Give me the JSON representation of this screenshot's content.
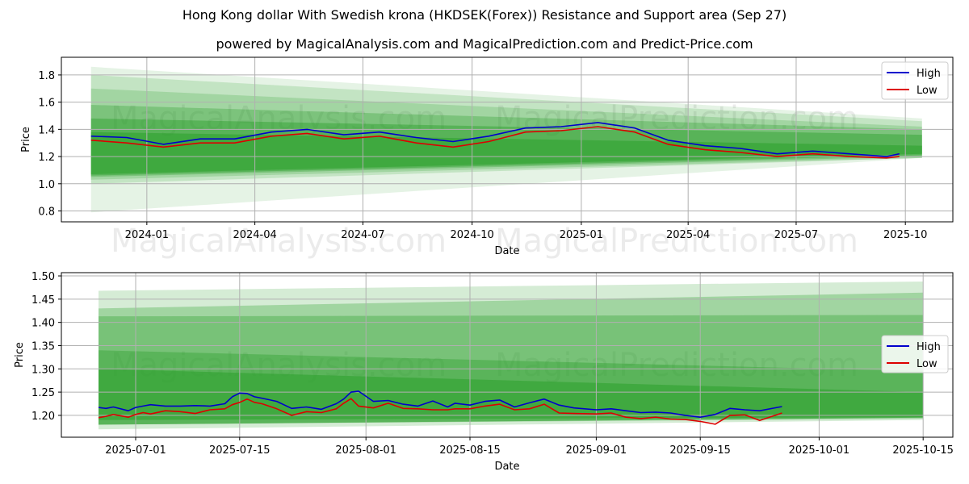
{
  "title": "Hong Kong dollar With Swedish krona (HKDSEK(Forex)) Resistance and Support area (Sep 27)",
  "subtitle": "powered by MagicalAnalysis.com and MagicalPrediction.com and Predict-Price.com",
  "watermarks": [
    "MagicalAnalysis.com",
    "MagicalPrediction.com"
  ],
  "colors": {
    "high": "#0000cc",
    "low": "#dd0000",
    "band": "#2ca02c",
    "grid": "#b0b0b0"
  },
  "chart_data": [
    {
      "type": "line",
      "xlabel": "Date",
      "ylabel": "Price",
      "grid": true,
      "legend_position": "top-right",
      "ylim": [
        0.72,
        1.93
      ],
      "x_ticks": [
        "2024-01",
        "2024-04",
        "2024-07",
        "2024-10",
        "2025-01",
        "2025-04",
        "2025-07",
        "2025-10"
      ],
      "y_ticks": [
        "0.8",
        "1.0",
        "1.2",
        "1.4",
        "1.6",
        "1.8"
      ],
      "series": [
        {
          "name": "High",
          "dates": [
            "2023-11-15",
            "2023-12-15",
            "2024-01-15",
            "2024-02-15",
            "2024-03-15",
            "2024-04-15",
            "2024-05-15",
            "2024-06-15",
            "2024-07-15",
            "2024-08-15",
            "2024-09-15",
            "2024-10-15",
            "2024-11-15",
            "2024-12-15",
            "2025-01-15",
            "2025-02-15",
            "2025-03-15",
            "2025-04-15",
            "2025-05-15",
            "2025-06-15",
            "2025-07-15",
            "2025-08-15",
            "2025-09-15",
            "2025-09-26"
          ],
          "values": [
            1.35,
            1.34,
            1.29,
            1.33,
            1.33,
            1.38,
            1.4,
            1.36,
            1.38,
            1.34,
            1.31,
            1.35,
            1.41,
            1.42,
            1.45,
            1.41,
            1.32,
            1.28,
            1.26,
            1.22,
            1.24,
            1.22,
            1.2,
            1.22
          ]
        },
        {
          "name": "Low",
          "dates": [
            "2023-11-15",
            "2023-12-15",
            "2024-01-15",
            "2024-02-15",
            "2024-03-15",
            "2024-04-15",
            "2024-05-15",
            "2024-06-15",
            "2024-07-15",
            "2024-08-15",
            "2024-09-15",
            "2024-10-15",
            "2024-11-15",
            "2024-12-15",
            "2025-01-15",
            "2025-02-15",
            "2025-03-15",
            "2025-04-15",
            "2025-05-15",
            "2025-06-15",
            "2025-07-15",
            "2025-08-15",
            "2025-09-15",
            "2025-09-26"
          ],
          "values": [
            1.32,
            1.3,
            1.27,
            1.3,
            1.3,
            1.35,
            1.37,
            1.33,
            1.35,
            1.3,
            1.27,
            1.31,
            1.38,
            1.39,
            1.42,
            1.38,
            1.29,
            1.25,
            1.23,
            1.2,
            1.22,
            1.2,
            1.19,
            1.2
          ]
        }
      ],
      "bands": [
        {
          "start_date": "2023-11-15",
          "end_date": "2025-10-15",
          "start": [
            0.79,
            1.86
          ],
          "end": [
            1.19,
            1.48
          ]
        },
        {
          "start_date": "2023-11-15",
          "end_date": "2025-10-15",
          "start": [
            1.0,
            1.8
          ],
          "end": [
            1.19,
            1.46
          ]
        },
        {
          "start_date": "2023-11-15",
          "end_date": "2025-10-15",
          "start": [
            1.03,
            1.7
          ],
          "end": [
            1.19,
            1.42
          ]
        },
        {
          "start_date": "2023-11-15",
          "end_date": "2025-10-15",
          "start": [
            1.05,
            1.58
          ],
          "end": [
            1.2,
            1.4
          ]
        },
        {
          "start_date": "2023-11-15",
          "end_date": "2025-10-15",
          "start": [
            1.06,
            1.48
          ],
          "end": [
            1.21,
            1.36
          ]
        },
        {
          "start_date": "2023-11-15",
          "end_date": "2025-10-15",
          "start": [
            1.07,
            1.38
          ],
          "end": [
            1.22,
            1.28
          ]
        }
      ]
    },
    {
      "type": "line",
      "xlabel": "Date",
      "ylabel": "Price",
      "grid": true,
      "legend_position": "center-right",
      "ylim": [
        1.153,
        1.507
      ],
      "x_ticks": [
        "2025-07-01",
        "2025-07-15",
        "2025-08-01",
        "2025-08-15",
        "2025-09-01",
        "2025-09-15",
        "2025-10-01",
        "2025-10-15"
      ],
      "y_ticks": [
        "1.20",
        "1.25",
        "1.30",
        "1.35",
        "1.40",
        "1.45",
        "1.50"
      ],
      "series": [
        {
          "name": "High",
          "dates": [
            "2025-06-26",
            "2025-06-27",
            "2025-06-28",
            "2025-06-30",
            "2025-07-01",
            "2025-07-02",
            "2025-07-03",
            "2025-07-05",
            "2025-07-07",
            "2025-07-09",
            "2025-07-11",
            "2025-07-13",
            "2025-07-14",
            "2025-07-15",
            "2025-07-16",
            "2025-07-17",
            "2025-07-18",
            "2025-07-20",
            "2025-07-22",
            "2025-07-24",
            "2025-07-26",
            "2025-07-28",
            "2025-07-29",
            "2025-07-30",
            "2025-07-31",
            "2025-08-02",
            "2025-08-04",
            "2025-08-06",
            "2025-08-08",
            "2025-08-10",
            "2025-08-12",
            "2025-08-13",
            "2025-08-15",
            "2025-08-17",
            "2025-08-19",
            "2025-08-21",
            "2025-08-23",
            "2025-08-25",
            "2025-08-27",
            "2025-08-29",
            "2025-09-01",
            "2025-09-03",
            "2025-09-05",
            "2025-09-07",
            "2025-09-09",
            "2025-09-11",
            "2025-09-13",
            "2025-09-15",
            "2025-09-17",
            "2025-09-19",
            "2025-09-21",
            "2025-09-23",
            "2025-09-26"
          ],
          "values": [
            1.217,
            1.215,
            1.218,
            1.21,
            1.217,
            1.22,
            1.223,
            1.22,
            1.22,
            1.221,
            1.22,
            1.225,
            1.24,
            1.248,
            1.247,
            1.24,
            1.237,
            1.23,
            1.215,
            1.218,
            1.213,
            1.225,
            1.235,
            1.25,
            1.252,
            1.23,
            1.232,
            1.224,
            1.22,
            1.231,
            1.218,
            1.226,
            1.222,
            1.23,
            1.233,
            1.218,
            1.227,
            1.235,
            1.222,
            1.216,
            1.212,
            1.214,
            1.21,
            1.206,
            1.207,
            1.205,
            1.2,
            1.196,
            1.202,
            1.215,
            1.212,
            1.21,
            1.219
          ]
        },
        {
          "name": "Low",
          "dates": [
            "2025-06-26",
            "2025-06-27",
            "2025-06-28",
            "2025-06-30",
            "2025-07-01",
            "2025-07-02",
            "2025-07-03",
            "2025-07-05",
            "2025-07-07",
            "2025-07-09",
            "2025-07-11",
            "2025-07-13",
            "2025-07-14",
            "2025-07-15",
            "2025-07-16",
            "2025-07-17",
            "2025-07-18",
            "2025-07-20",
            "2025-07-22",
            "2025-07-24",
            "2025-07-26",
            "2025-07-28",
            "2025-07-29",
            "2025-07-30",
            "2025-07-31",
            "2025-08-02",
            "2025-08-04",
            "2025-08-06",
            "2025-08-08",
            "2025-08-10",
            "2025-08-12",
            "2025-08-13",
            "2025-08-15",
            "2025-08-17",
            "2025-08-19",
            "2025-08-21",
            "2025-08-23",
            "2025-08-25",
            "2025-08-27",
            "2025-08-29",
            "2025-09-01",
            "2025-09-03",
            "2025-09-05",
            "2025-09-07",
            "2025-09-09",
            "2025-09-11",
            "2025-09-13",
            "2025-09-15",
            "2025-09-17",
            "2025-09-19",
            "2025-09-21",
            "2025-09-23",
            "2025-09-26"
          ],
          "values": [
            1.195,
            1.198,
            1.202,
            1.196,
            1.202,
            1.206,
            1.203,
            1.21,
            1.208,
            1.204,
            1.212,
            1.214,
            1.223,
            1.228,
            1.235,
            1.228,
            1.225,
            1.214,
            1.2,
            1.208,
            1.206,
            1.214,
            1.226,
            1.236,
            1.22,
            1.216,
            1.226,
            1.215,
            1.214,
            1.212,
            1.212,
            1.214,
            1.214,
            1.22,
            1.224,
            1.212,
            1.214,
            1.224,
            1.205,
            1.204,
            1.203,
            1.205,
            1.196,
            1.193,
            1.196,
            1.192,
            1.191,
            1.187,
            1.181,
            1.2,
            1.201,
            1.189,
            1.205
          ]
        }
      ],
      "bands": [
        {
          "start_date": "2025-06-26",
          "end_date": "2025-10-15",
          "start": [
            1.17,
            1.468
          ],
          "end": [
            1.19,
            1.488
          ]
        },
        {
          "start_date": "2025-06-26",
          "end_date": "2025-10-15",
          "start": [
            1.18,
            1.43
          ],
          "end": [
            1.193,
            1.464
          ]
        },
        {
          "start_date": "2025-06-26",
          "end_date": "2025-10-15",
          "start": [
            1.18,
            1.413
          ],
          "end": [
            1.195,
            1.416
          ]
        },
        {
          "start_date": "2025-06-26",
          "end_date": "2025-10-15",
          "start": [
            1.18,
            1.34
          ],
          "end": [
            1.195,
            1.295
          ]
        },
        {
          "start_date": "2025-06-26",
          "end_date": "2025-10-15",
          "start": [
            1.19,
            1.3
          ],
          "end": [
            1.196,
            1.25
          ]
        }
      ]
    }
  ]
}
